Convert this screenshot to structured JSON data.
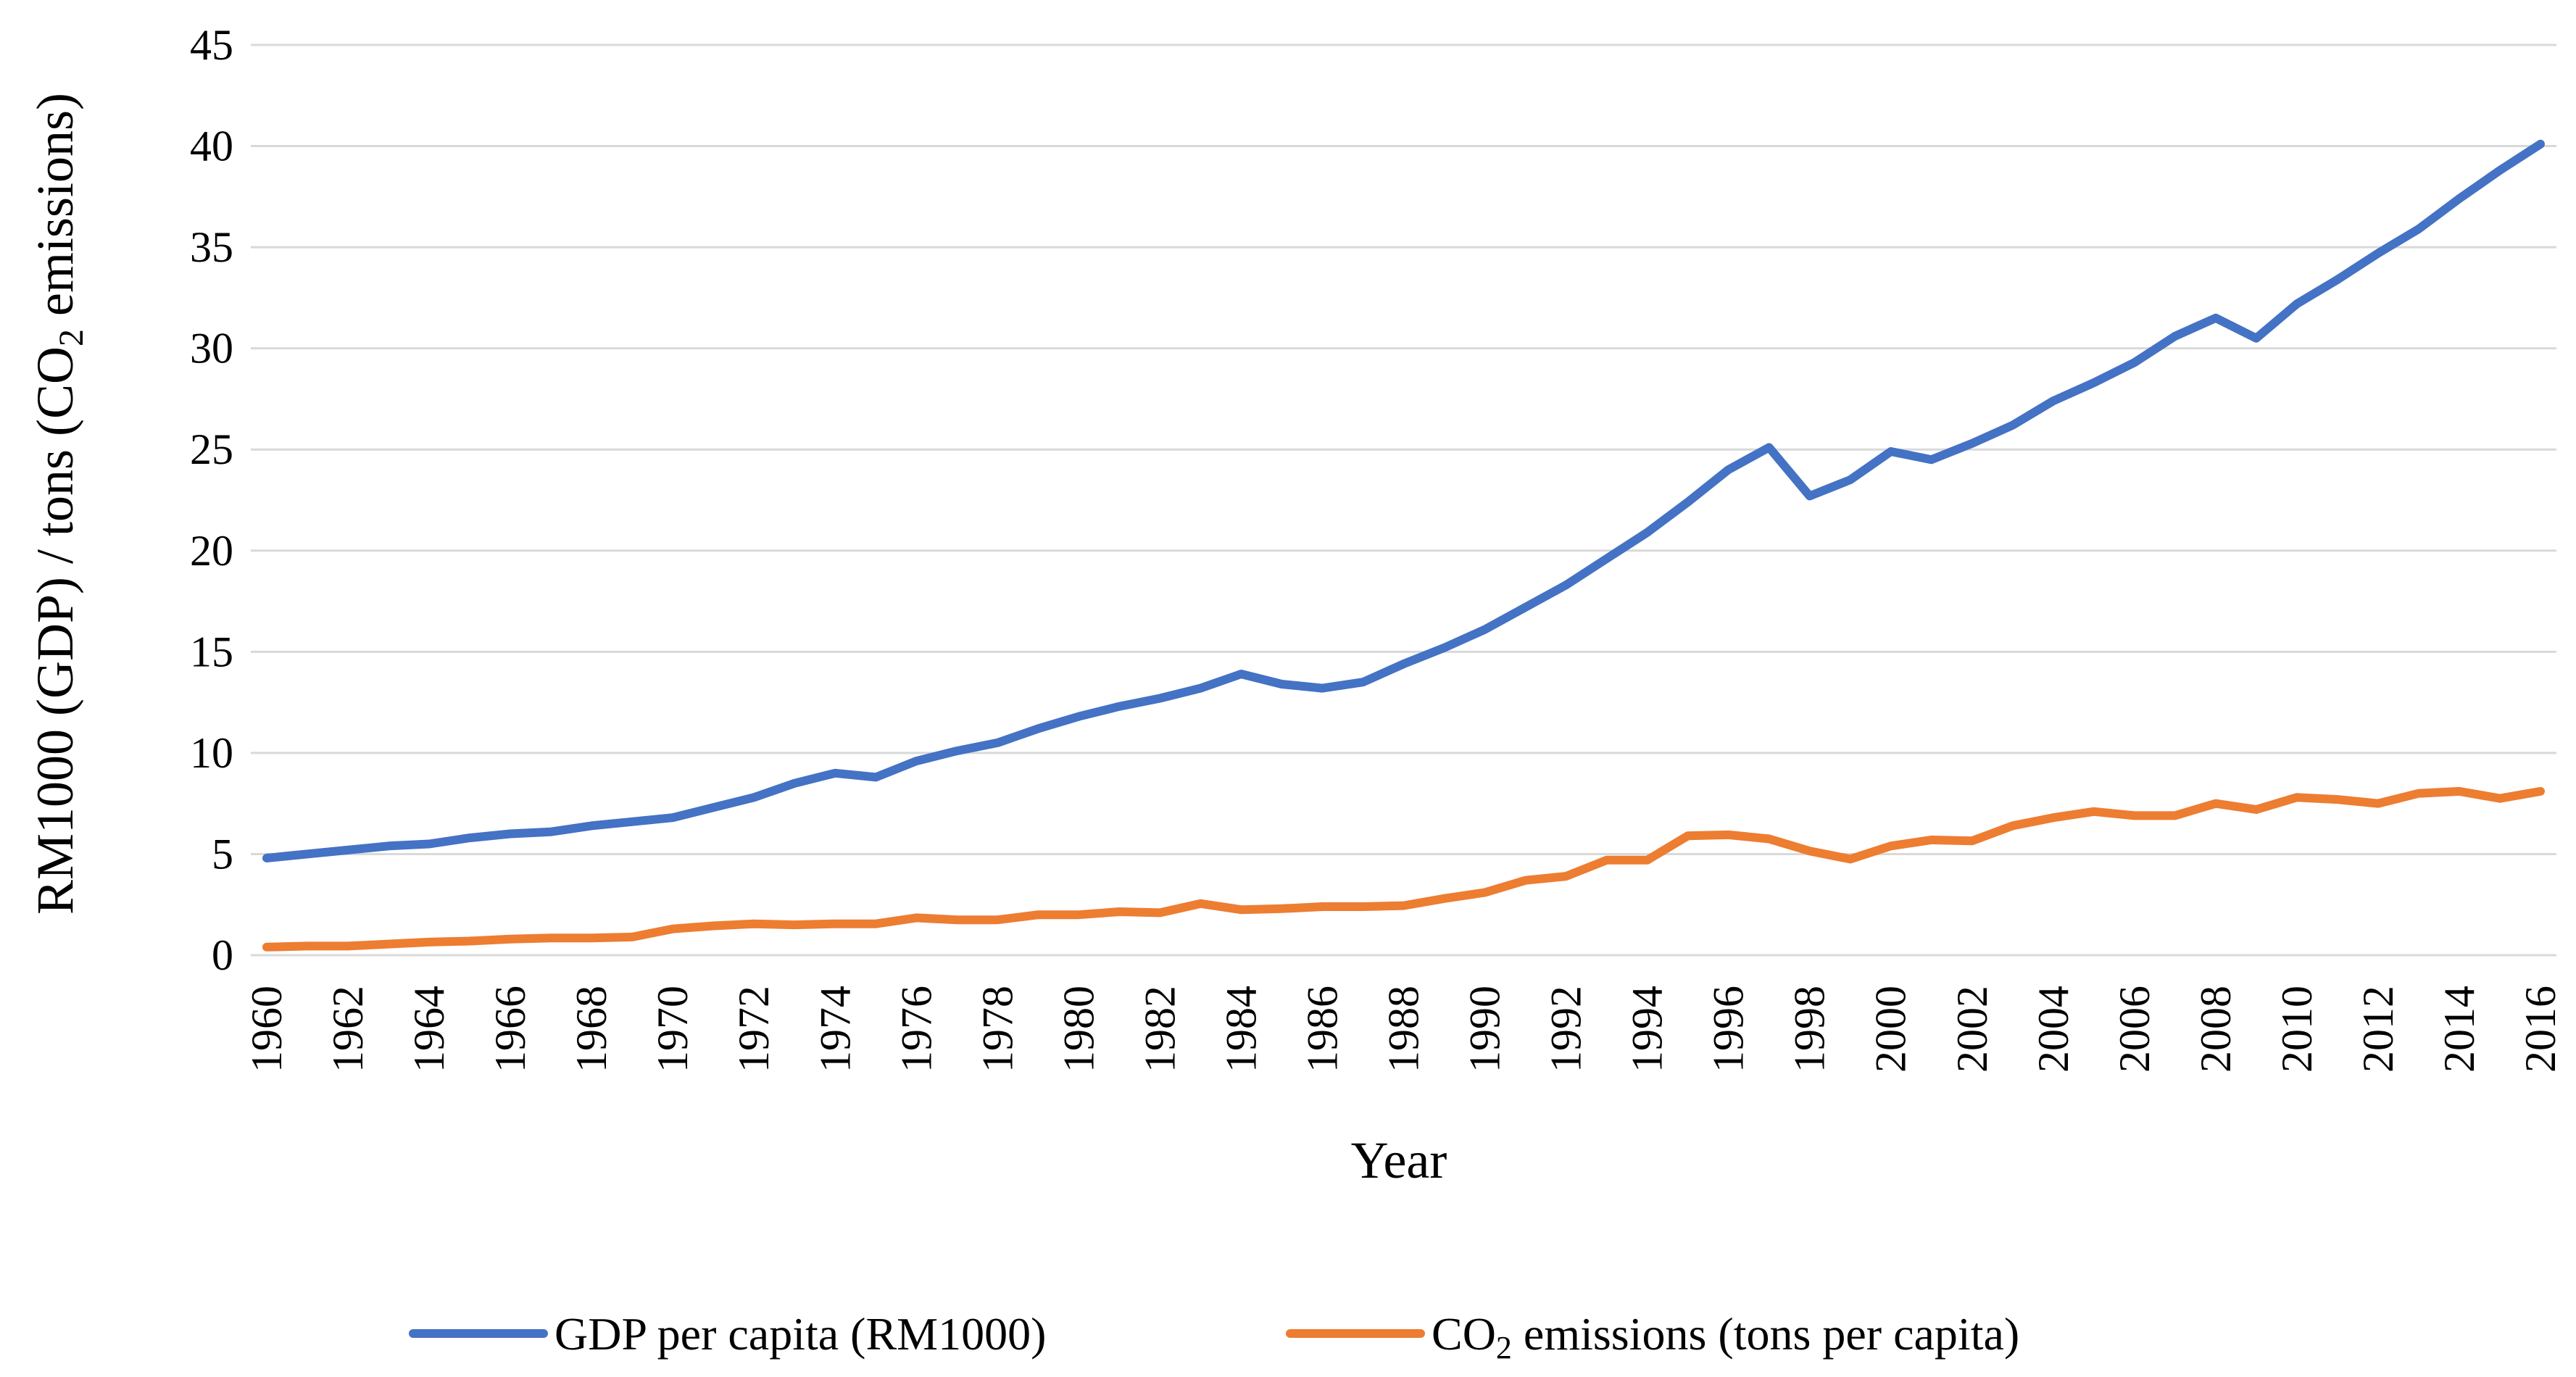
{
  "chart_data": {
    "type": "line",
    "title": "",
    "xlabel": "Year",
    "ylabel": {
      "prefix": "RM1000 (GDP) / tons (CO",
      "subscript": "2",
      "suffix": " emissions)"
    },
    "ylim": [
      0,
      45
    ],
    "yticks": [
      0,
      5,
      10,
      15,
      20,
      25,
      30,
      35,
      40,
      45
    ],
    "grid": true,
    "legend_position": "bottom-center",
    "x": [
      1960,
      1961,
      1962,
      1963,
      1964,
      1965,
      1966,
      1967,
      1968,
      1969,
      1970,
      1971,
      1972,
      1973,
      1974,
      1975,
      1976,
      1977,
      1978,
      1979,
      1980,
      1981,
      1982,
      1983,
      1984,
      1985,
      1986,
      1987,
      1988,
      1989,
      1990,
      1991,
      1992,
      1993,
      1994,
      1995,
      1996,
      1997,
      1998,
      1999,
      2000,
      2001,
      2002,
      2003,
      2004,
      2005,
      2006,
      2007,
      2008,
      2009,
      2010,
      2011,
      2012,
      2013,
      2014,
      2015,
      2016
    ],
    "xtick_labels": [
      "1960",
      "1962",
      "1964",
      "1966",
      "1968",
      "1970",
      "1972",
      "1974",
      "1976",
      "1978",
      "1980",
      "1982",
      "1984",
      "1986",
      "1988",
      "1990",
      "1992",
      "1994",
      "1996",
      "1998",
      "2000",
      "2002",
      "2004",
      "2006",
      "2008",
      "2010",
      "2012",
      "2014",
      "2016"
    ],
    "series": [
      {
        "name": "GDP per capita (RM1000)",
        "legend_prefix": "GDP per capita (RM1000)",
        "legend_subscript": "",
        "legend_suffix": "",
        "color": "#4472C4",
        "values": [
          4.8,
          5.0,
          5.2,
          5.4,
          5.5,
          5.8,
          6.0,
          6.1,
          6.4,
          6.6,
          6.8,
          7.3,
          7.8,
          8.5,
          9.0,
          8.8,
          9.6,
          10.1,
          10.5,
          11.2,
          11.8,
          12.3,
          12.7,
          13.2,
          13.9,
          13.4,
          13.2,
          13.5,
          14.4,
          15.2,
          16.1,
          17.2,
          18.3,
          19.6,
          20.9,
          22.4,
          24.0,
          25.1,
          22.7,
          23.5,
          24.9,
          24.5,
          25.3,
          26.2,
          27.4,
          28.3,
          29.3,
          30.6,
          31.5,
          30.5,
          32.2,
          33.4,
          34.7,
          35.9,
          37.4,
          38.8,
          40.1
        ]
      },
      {
        "name": "CO2 emissions (tons per capita)",
        "legend_prefix": "CO",
        "legend_subscript": "2",
        "legend_suffix": " emissions (tons per capita)",
        "color": "#ED7D31",
        "values": [
          0.4,
          0.45,
          0.45,
          0.55,
          0.65,
          0.7,
          0.8,
          0.85,
          0.85,
          0.9,
          1.3,
          1.45,
          1.55,
          1.5,
          1.55,
          1.55,
          1.85,
          1.75,
          1.75,
          2.0,
          2.0,
          2.15,
          2.1,
          2.55,
          2.25,
          2.3,
          2.4,
          2.4,
          2.45,
          2.8,
          3.1,
          3.7,
          3.9,
          4.7,
          4.7,
          5.9,
          5.95,
          5.75,
          5.15,
          4.75,
          5.4,
          5.7,
          5.65,
          6.4,
          6.8,
          7.1,
          6.9,
          6.9,
          7.5,
          7.2,
          7.8,
          7.7,
          7.5,
          8.0,
          8.1,
          7.75,
          8.1
        ]
      }
    ]
  }
}
